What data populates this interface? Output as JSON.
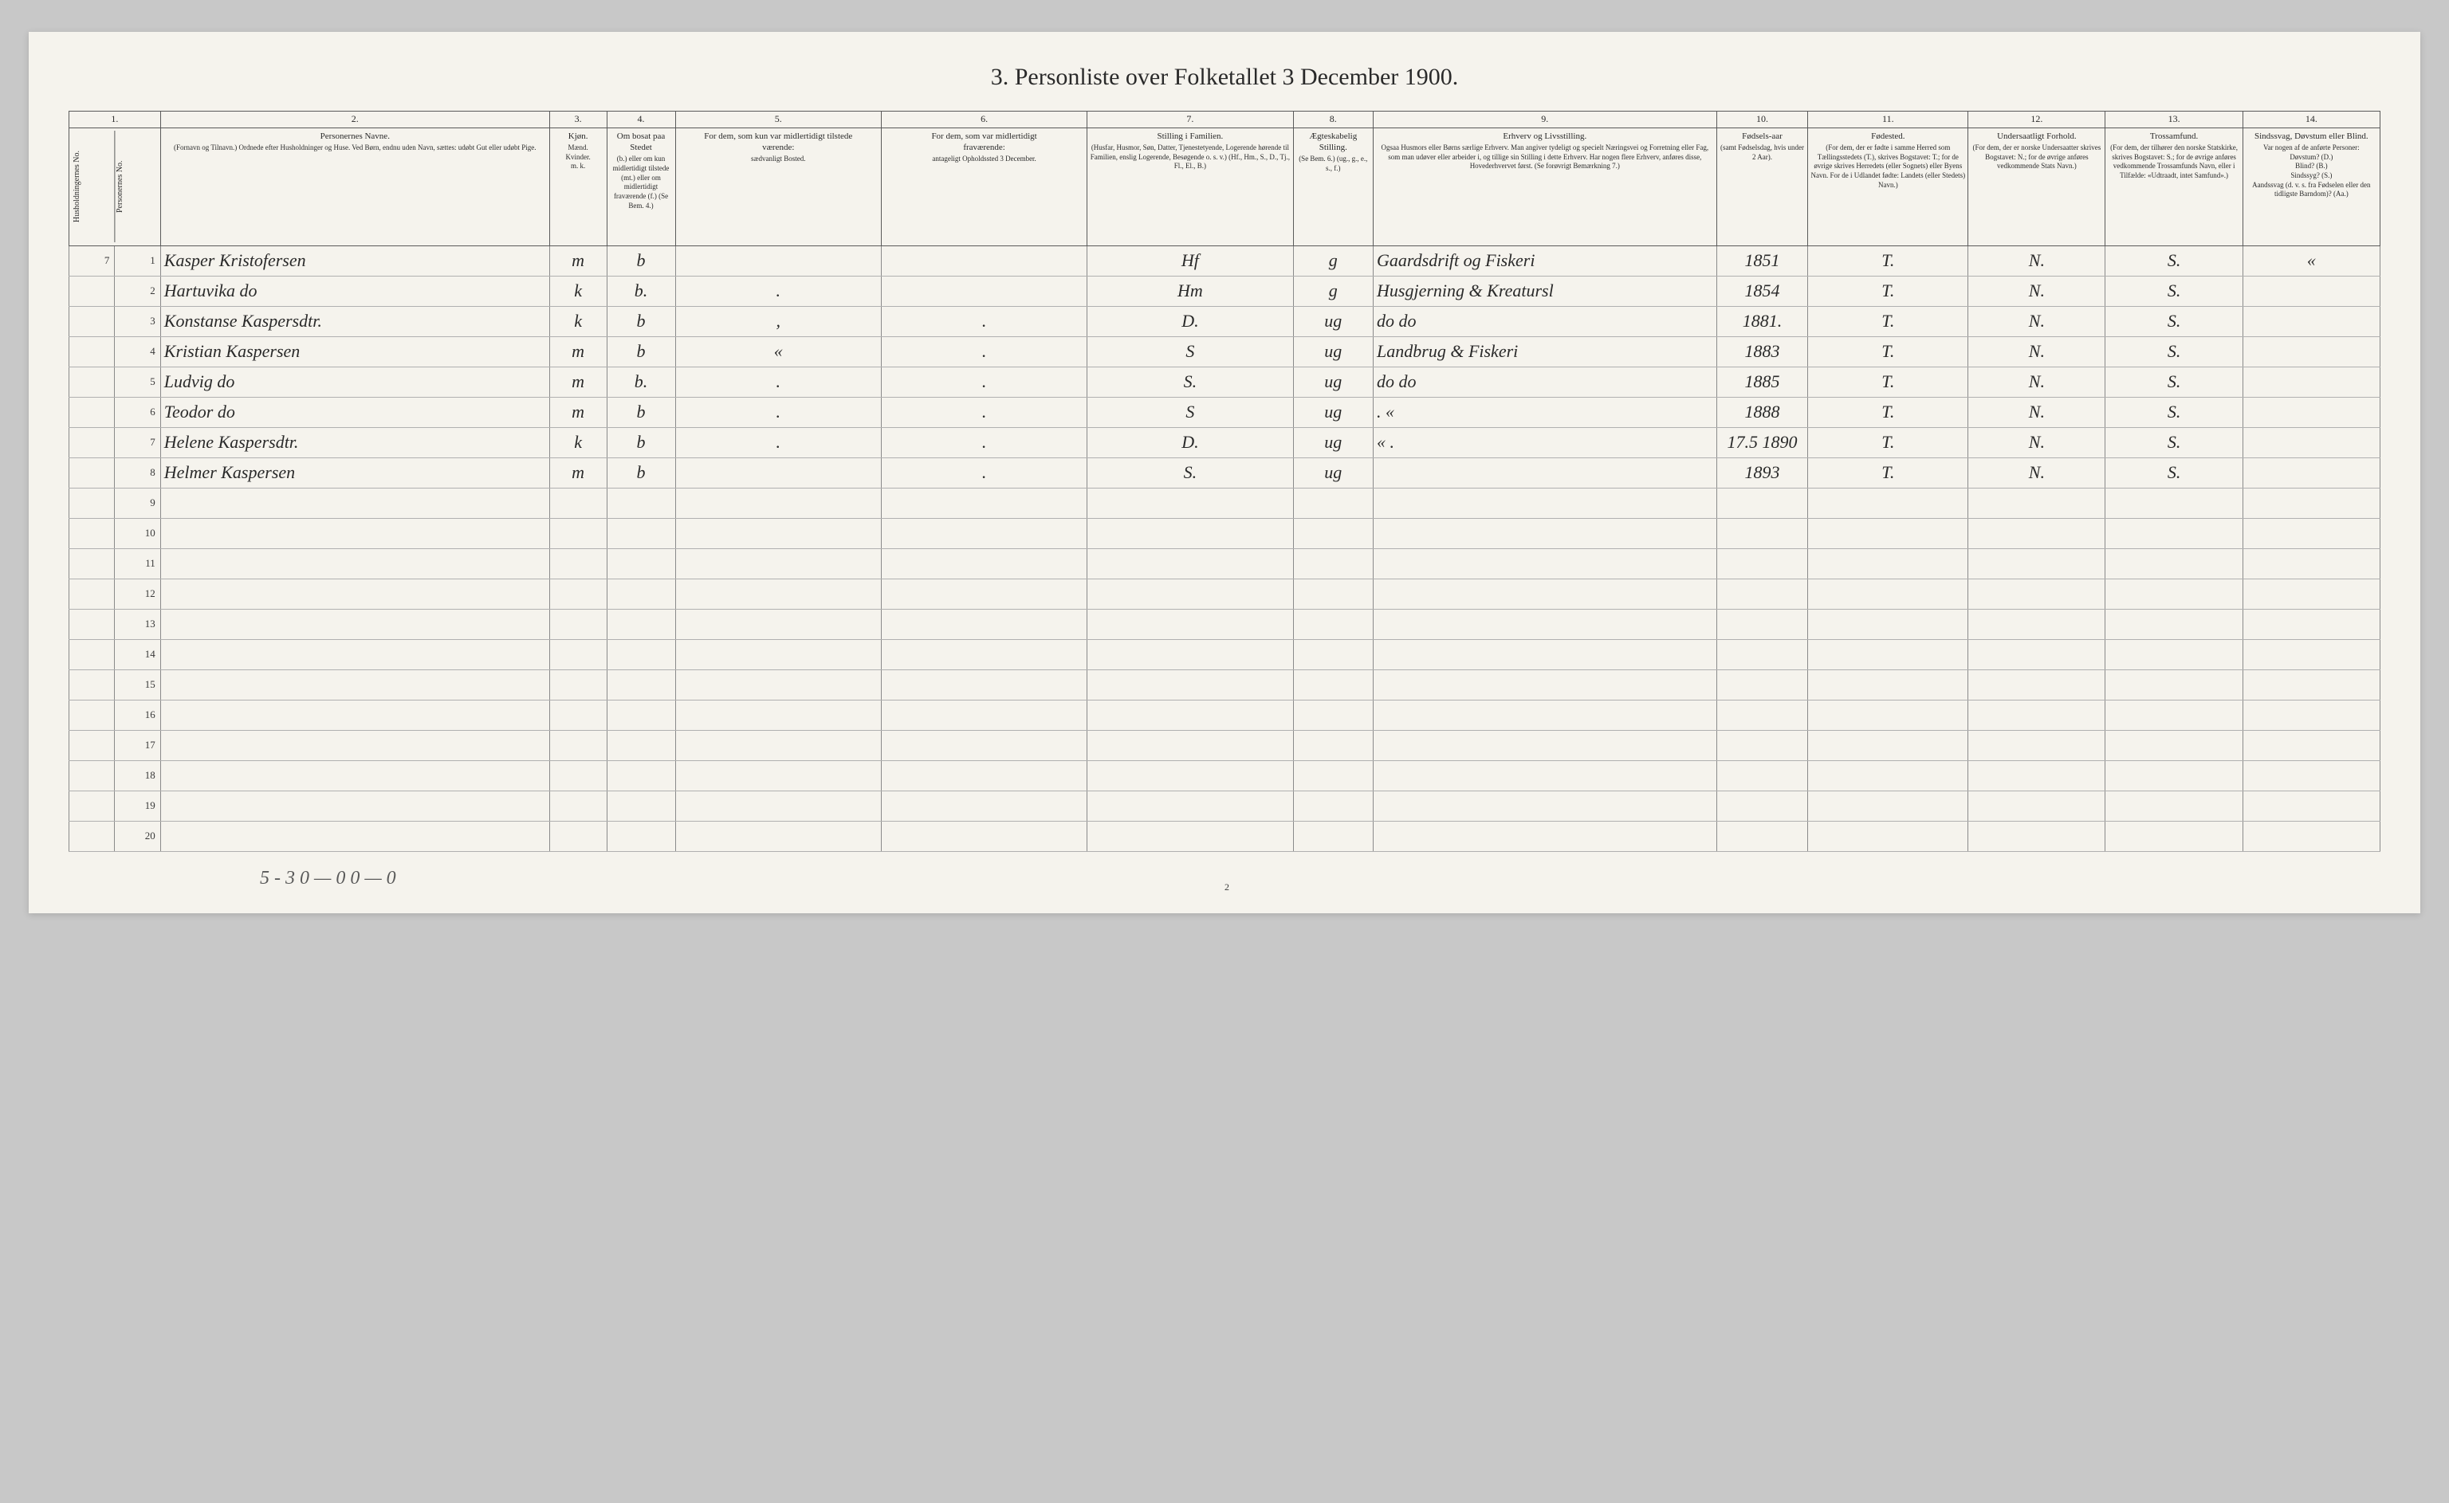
{
  "title": "3. Personliste over Folketallet 3 December 1900.",
  "pageNumber": "2",
  "footerTally": "5 - 3   0 — 0   0 — 0",
  "columns": {
    "c1": {
      "num": "1.",
      "rot1": "Husholdningernes No.",
      "rot2": "Personernes No."
    },
    "c2": {
      "num": "2.",
      "main": "Personernes Navne.",
      "sub": "(Fornavn og Tilnavn.)\nOrdnede efter Husholdninger og Huse.\nVed Børn, endnu uden Navn, sættes: udøbt Gut\neller udøbt Pige."
    },
    "c3": {
      "num": "3.",
      "main": "Kjøn.",
      "sub": "Mænd.\nKvinder.\nm.  k."
    },
    "c4": {
      "num": "4.",
      "main": "Om bosat paa Stedet",
      "sub": "(b.) eller om kun midlertidigt tilstede (mt.) eller om midlertidigt fraværende (f.)\n(Se Bem. 4.)"
    },
    "c5": {
      "num": "5.",
      "main": "For dem, som kun var midlertidigt tilstede\nværende:",
      "sub": "sædvanligt Bosted."
    },
    "c6": {
      "num": "6.",
      "main": "For dem, som var midlertidigt\nfraværende:",
      "sub": "antageligt Opholdssted 3 December."
    },
    "c7": {
      "num": "7.",
      "main": "Stilling i Familien.",
      "sub": "(Husfar, Husmor, Søn, Datter, Tjenestetyende, Logerende hørende til Familien, enslig Logerende, Besøgende o. s. v.)\n(Hf., Hm., S., D., Tj., Fl., El., B.)"
    },
    "c8": {
      "num": "8.",
      "main": "Ægteskabelig Stilling.",
      "sub": "(Se Bem. 6.)\n(ug., g., e., s., f.)"
    },
    "c9": {
      "num": "9.",
      "main": "Erhverv og Livsstilling.",
      "sub": "Ogsaa Husmors eller Børns særlige Erhverv.\nMan angiver tydeligt og specielt Næringsvei og Forretning eller Fag, som man udøver eller arbeider i, og tillige sin Stilling i dette Erhverv.\nHar nogen flere Erhverv, anføres disse, Hovederhvervet først.\n(Se forøvrigt Bemærkning 7.)"
    },
    "c10": {
      "num": "10.",
      "main": "Fødsels-aar",
      "sub": "(samt Fødselsdag, hvis under 2 Aar)."
    },
    "c11": {
      "num": "11.",
      "main": "Fødested.",
      "sub": "(For dem, der er fødte i samme Herred som Tællingsstedets (T.), skrives Bogstavet: T.; for de øvrige skrives Herredets (eller Sognets) eller Byens Navn. For de i Udlandet fødte: Landets (eller Stedets) Navn.)"
    },
    "c12": {
      "num": "12.",
      "main": "Undersaatligt Forhold.",
      "sub": "(For dem, der er norske Undersaatter skrives Bogstavet: N.; for de øvrige anføres vedkommende Stats Navn.)"
    },
    "c13": {
      "num": "13.",
      "main": "Trossamfund.",
      "sub": "(For dem, der tilhører den norske Statskirke, skrives Bogstavet: S.; for de øvrige anføres vedkommende Trossamfunds Navn, eller i Tilfælde: «Udtraadt, intet Samfund».)"
    },
    "c14": {
      "num": "14.",
      "main": "Sindssvag, Døvstum eller Blind.",
      "sub": "Var nogen af de anførte Personer:\nDøvstum?   (D.)\nBlind?   (B.)\nSindssyg?   (S.)\nAandssvag (d. v. s. fra Fødselen eller den tidligste Barndom)? (Aa.)"
    }
  },
  "rows": [
    {
      "hh": "7",
      "p": "1",
      "name": "Kasper Kristofersen",
      "sex": "m",
      "res": "b",
      "c5": "",
      "c6": "",
      "stilling": "Hf",
      "egte": "g",
      "erhv": "Gaardsdrift og Fiskeri",
      "aar": "1851",
      "fod": "T.",
      "und": "N.",
      "tros": "S.",
      "sind": "«"
    },
    {
      "hh": "",
      "p": "2",
      "name": "Hartuvika   do",
      "sex": "k",
      "res": "b.",
      "c5": ".",
      "c6": "",
      "stilling": "Hm",
      "egte": "g",
      "erhv": "Husgjerning & Kreatursl",
      "aar": "1854",
      "fod": "T.",
      "und": "N.",
      "tros": "S.",
      "sind": ""
    },
    {
      "hh": "",
      "p": "3",
      "name": "Konstanse Kaspersdtr.",
      "sex": "k",
      "res": "b",
      "c5": ",",
      "c6": ".",
      "stilling": "D.",
      "egte": "ug",
      "erhv": "do      do",
      "aar": "1881.",
      "fod": "T.",
      "und": "N.",
      "tros": "S.",
      "sind": ""
    },
    {
      "hh": "",
      "p": "4",
      "name": "Kristian Kaspersen",
      "sex": "m",
      "res": "b",
      "c5": "«",
      "c6": ".",
      "stilling": "S",
      "egte": "ug",
      "erhv": "Landbrug & Fiskeri",
      "aar": "1883",
      "fod": "T.",
      "und": "N.",
      "tros": "S.",
      "sind": ""
    },
    {
      "hh": "",
      "p": "5",
      "name": "Ludvig    do",
      "sex": "m",
      "res": "b.",
      "c5": ".",
      "c6": ".",
      "stilling": "S.",
      "egte": "ug",
      "erhv": "do      do",
      "aar": "1885",
      "fod": "T.",
      "und": "N.",
      "tros": "S.",
      "sind": ""
    },
    {
      "hh": "",
      "p": "6",
      "name": "Teodor    do",
      "sex": "m",
      "res": "b",
      "c5": ".",
      "c6": ".",
      "stilling": "S",
      "egte": "ug",
      "erhv": ".      «",
      "aar": "1888",
      "fod": "T.",
      "und": "N.",
      "tros": "S.",
      "sind": ""
    },
    {
      "hh": "",
      "p": "7",
      "name": "Helene   Kaspersdtr.",
      "sex": "k",
      "res": "b",
      "c5": ".",
      "c6": ".",
      "stilling": "D.",
      "egte": "ug",
      "erhv": "«      .",
      "aar": "17.5 1890",
      "fod": "T.",
      "und": "N.",
      "tros": "S.",
      "sind": ""
    },
    {
      "hh": "",
      "p": "8",
      "name": "Helmer   Kaspersen",
      "sex": "m",
      "res": "b",
      "c5": "",
      "c6": ".",
      "stilling": "S.",
      "egte": "ug",
      "erhv": "",
      "aar": "1893",
      "fod": "T.",
      "und": "N.",
      "tros": "S.",
      "sind": ""
    }
  ],
  "emptyRowNums": [
    "9",
    "10",
    "11",
    "12",
    "13",
    "14",
    "15",
    "16",
    "17",
    "18",
    "19",
    "20"
  ]
}
